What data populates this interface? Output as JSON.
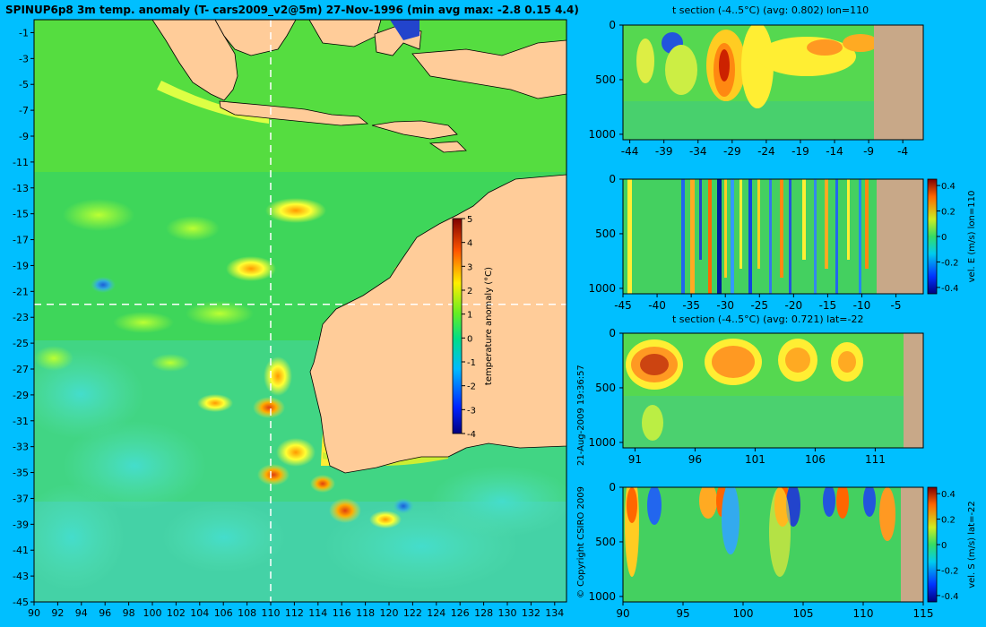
{
  "title": "SPINUP6p8 3m temp. anomaly (T- cars2009_v2@5m) 27-Nov-1996 (min avg max: -2.8 0.15 4.4)",
  "copyright": "© Copyright CSIRO 2009",
  "timestamp": "21-Aug-2009 19:36:57",
  "colors": {
    "background": "#00bfff",
    "land": "#ffcc99",
    "section_land": "#c8a888",
    "crosshair": "#ffffff"
  },
  "chart_data": [
    {
      "type": "heatmap",
      "name": "map",
      "x_ticks": [
        "90",
        "92",
        "94",
        "96",
        "98",
        "100",
        "102",
        "104",
        "106",
        "108",
        "110",
        "112",
        "114",
        "116",
        "118",
        "120",
        "122",
        "124",
        "126",
        "128",
        "130",
        "132",
        "134"
      ],
      "y_ticks": [
        "-1",
        "-3",
        "-5",
        "-7",
        "-9",
        "-11",
        "-13",
        "-15",
        "-17",
        "-19",
        "-21",
        "-23",
        "-25",
        "-27",
        "-29",
        "-31",
        "-33",
        "-35",
        "-37",
        "-39",
        "-41",
        "-43",
        "-45"
      ],
      "xlim": [
        90,
        135
      ],
      "ylim": [
        -45,
        0
      ],
      "crosshair": {
        "lon": 110,
        "lat": -22
      },
      "colorbar": {
        "label": "temperature anomaly (°C)",
        "ticks": [
          "5",
          "4",
          "3",
          "2",
          "1",
          "0",
          "-1",
          "-2",
          "-3",
          "-4"
        ],
        "range": [
          -4,
          5
        ]
      }
    },
    {
      "type": "heatmap",
      "name": "t-section-lon",
      "title": "t section (-4..5°C) (avg: 0.802) lon=110",
      "x_ticks": [
        "-44",
        "-39",
        "-34",
        "-29",
        "-24",
        "-19",
        "-14",
        "-9",
        "-4"
      ],
      "y_ticks": [
        "0",
        "500",
        "1000"
      ],
      "xlim": [
        -45,
        -1
      ],
      "ylim": [
        1050,
        0
      ]
    },
    {
      "type": "heatmap",
      "name": "v-section-lon",
      "x_ticks": [
        "-45",
        "-40",
        "-35",
        "-30",
        "-25",
        "-20",
        "-15",
        "-10",
        "-5"
      ],
      "y_ticks": [
        "0",
        "500",
        "1000"
      ],
      "xlim": [
        -45,
        -1
      ],
      "ylim": [
        1050,
        0
      ],
      "colorbar": {
        "label": "vel. E (m/s) lon=110",
        "ticks": [
          "0.4",
          "0.2",
          "0",
          "-0.2",
          "-0.4"
        ],
        "range": [
          -0.45,
          0.45
        ]
      }
    },
    {
      "type": "heatmap",
      "name": "t-section-lat",
      "title": "t section (-4..5°C) (avg: 0.721) lat=-22",
      "x_ticks": [
        "91",
        "96",
        "101",
        "106",
        "111"
      ],
      "y_ticks": [
        "0",
        "500",
        "1000"
      ],
      "xlim": [
        90,
        115
      ],
      "ylim": [
        1050,
        0
      ]
    },
    {
      "type": "heatmap",
      "name": "v-section-lat",
      "x_ticks": [
        "90",
        "95",
        "100",
        "105",
        "110",
        "115"
      ],
      "y_ticks": [
        "0",
        "500",
        "1000"
      ],
      "xlim": [
        90,
        115
      ],
      "ylim": [
        1050,
        0
      ],
      "colorbar": {
        "label": "vel. S (m/s) lat=-22",
        "ticks": [
          "0.4",
          "0.2",
          "0",
          "-0.2",
          "-0.4"
        ],
        "range": [
          -0.45,
          0.45
        ]
      }
    }
  ]
}
